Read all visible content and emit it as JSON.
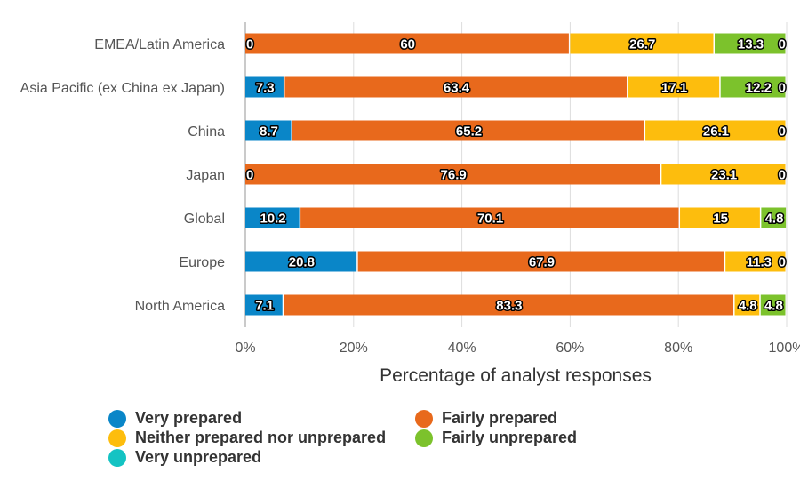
{
  "chart_data": {
    "type": "bar",
    "orientation": "horizontal",
    "stacked": true,
    "title": "",
    "xlabel": "Percentage of analyst responses",
    "ylabel": "",
    "xlim": [
      0,
      100
    ],
    "x_ticks": [
      "0%",
      "20%",
      "40%",
      "60%",
      "80%",
      "100%"
    ],
    "x_tick_values": [
      0,
      20,
      40,
      60,
      80,
      100
    ],
    "grid": true,
    "legend_position": "bottom",
    "categories": [
      "EMEA/Latin America",
      "Asia Pacific (ex China ex Japan)",
      "China",
      "Japan",
      "Global",
      "Europe",
      "North America"
    ],
    "series": [
      {
        "name": "Very prepared",
        "color": "#0a86c8",
        "values": [
          0,
          7.3,
          8.7,
          0,
          10.2,
          20.8,
          7.1
        ],
        "labels": [
          "0",
          "7.3",
          "8.7",
          "0",
          "10.2",
          "20.8",
          "7.1"
        ]
      },
      {
        "name": "Fairly prepared",
        "color": "#e8691c",
        "values": [
          60,
          63.4,
          65.2,
          76.9,
          70.1,
          67.9,
          83.3
        ],
        "labels": [
          "60",
          "63.4",
          "65.2",
          "76.9",
          "70.1",
          "67.9",
          "83.3"
        ]
      },
      {
        "name": "Neither prepared nor unprepared",
        "color": "#fdbd0d",
        "values": [
          26.7,
          17.1,
          26.1,
          23.1,
          15,
          11.3,
          4.8
        ],
        "labels": [
          "26.7",
          "17.1",
          "26.1",
          "23.1",
          "15",
          "11.3",
          "4.8"
        ]
      },
      {
        "name": "Fairly unprepared",
        "color": "#7cc22c",
        "values": [
          13.3,
          12.2,
          0,
          0,
          4.8,
          0,
          4.8
        ],
        "labels": [
          "13.3",
          "12.2",
          null,
          null,
          "4.8",
          null,
          "4.8"
        ]
      },
      {
        "name": "Very unprepared",
        "color": "#14c3c3",
        "values": [
          0,
          0,
          0,
          0,
          0,
          0,
          0
        ],
        "labels": [
          "0",
          "0",
          "0",
          "0",
          null,
          "0",
          null
        ]
      }
    ]
  },
  "legend": {
    "items": [
      {
        "label": "Very prepared",
        "color": "#0a86c8"
      },
      {
        "label": "Fairly prepared",
        "color": "#e8691c"
      },
      {
        "label": "Neither prepared nor unprepared",
        "color": "#fdbd0d"
      },
      {
        "label": "Fairly unprepared",
        "color": "#7cc22c"
      },
      {
        "label": "Very unprepared",
        "color": "#14c3c3"
      }
    ]
  }
}
